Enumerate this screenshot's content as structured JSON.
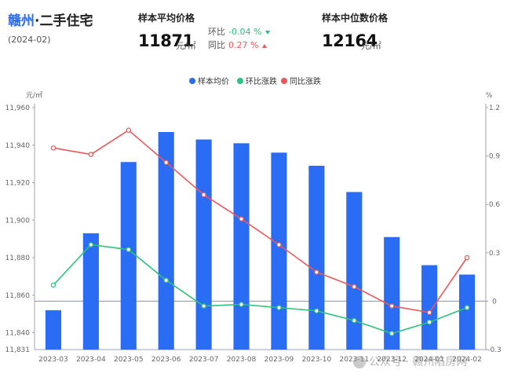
{
  "header": {
    "city": "赣州",
    "separator": "·",
    "title_rest": "二手住宅",
    "period": "(2024-02)"
  },
  "kpis": {
    "avg": {
      "label": "样本平均价格",
      "value": "11871",
      "unit": "元/㎡",
      "mom_label": "环比",
      "mom_value": "-0.04 %",
      "yoy_label": "同比",
      "yoy_value": "0.27 %"
    },
    "median": {
      "label": "样本中位数价格",
      "value": "12164",
      "unit": "元/㎡"
    }
  },
  "colors": {
    "bar": "#2a6df4",
    "mom": "#2ec27e",
    "yoy": "#e8595a",
    "axis": "#9aa3b5"
  },
  "chart_data": {
    "type": "bar+line",
    "legend": {
      "placement": "top-center"
    },
    "categories": [
      "2023-03",
      "2023-04",
      "2023-05",
      "2023-06",
      "2023-07",
      "2023-08",
      "2023-09",
      "2023-10",
      "2023-11",
      "2023-12",
      "2024-01",
      "2024-02"
    ],
    "left_axis": {
      "unit": "元/㎡",
      "min": 11831,
      "max": 11960,
      "ticks": [
        11960,
        11940,
        11920,
        11900,
        11880,
        11860,
        11840
      ],
      "tick_labels": [
        "11,960",
        "11,940",
        "11,920",
        "11,900",
        "11,880",
        "11,860",
        "11,840"
      ],
      "bottom_label": "11,831"
    },
    "right_axis": {
      "unit": "%",
      "min": -0.3,
      "max": 1.2,
      "ticks": [
        1.2,
        0.9,
        0.6,
        0.3,
        0,
        -0.3
      ],
      "tick_labels": [
        "1.2",
        "0.9",
        "0.6",
        "0.3",
        "0",
        "-0.3"
      ]
    },
    "series": [
      {
        "name": "样本均价",
        "kind": "bar",
        "axis": "left",
        "values": [
          11852,
          11893,
          11931,
          11947,
          11943,
          11941,
          11936,
          11929,
          11915,
          11891,
          11876,
          11871
        ]
      },
      {
        "name": "环比涨跌",
        "kind": "line",
        "axis": "right",
        "values": [
          0.1,
          0.35,
          0.32,
          0.13,
          -0.03,
          -0.02,
          -0.04,
          -0.06,
          -0.12,
          -0.2,
          -0.13,
          -0.04
        ]
      },
      {
        "name": "同比涨跌",
        "kind": "line",
        "axis": "right",
        "values": [
          0.95,
          0.91,
          1.06,
          0.86,
          0.66,
          0.51,
          0.35,
          0.18,
          0.09,
          -0.03,
          -0.07,
          0.27
        ]
      }
    ]
  },
  "watermark": "公众号 · 赣州陷房网"
}
